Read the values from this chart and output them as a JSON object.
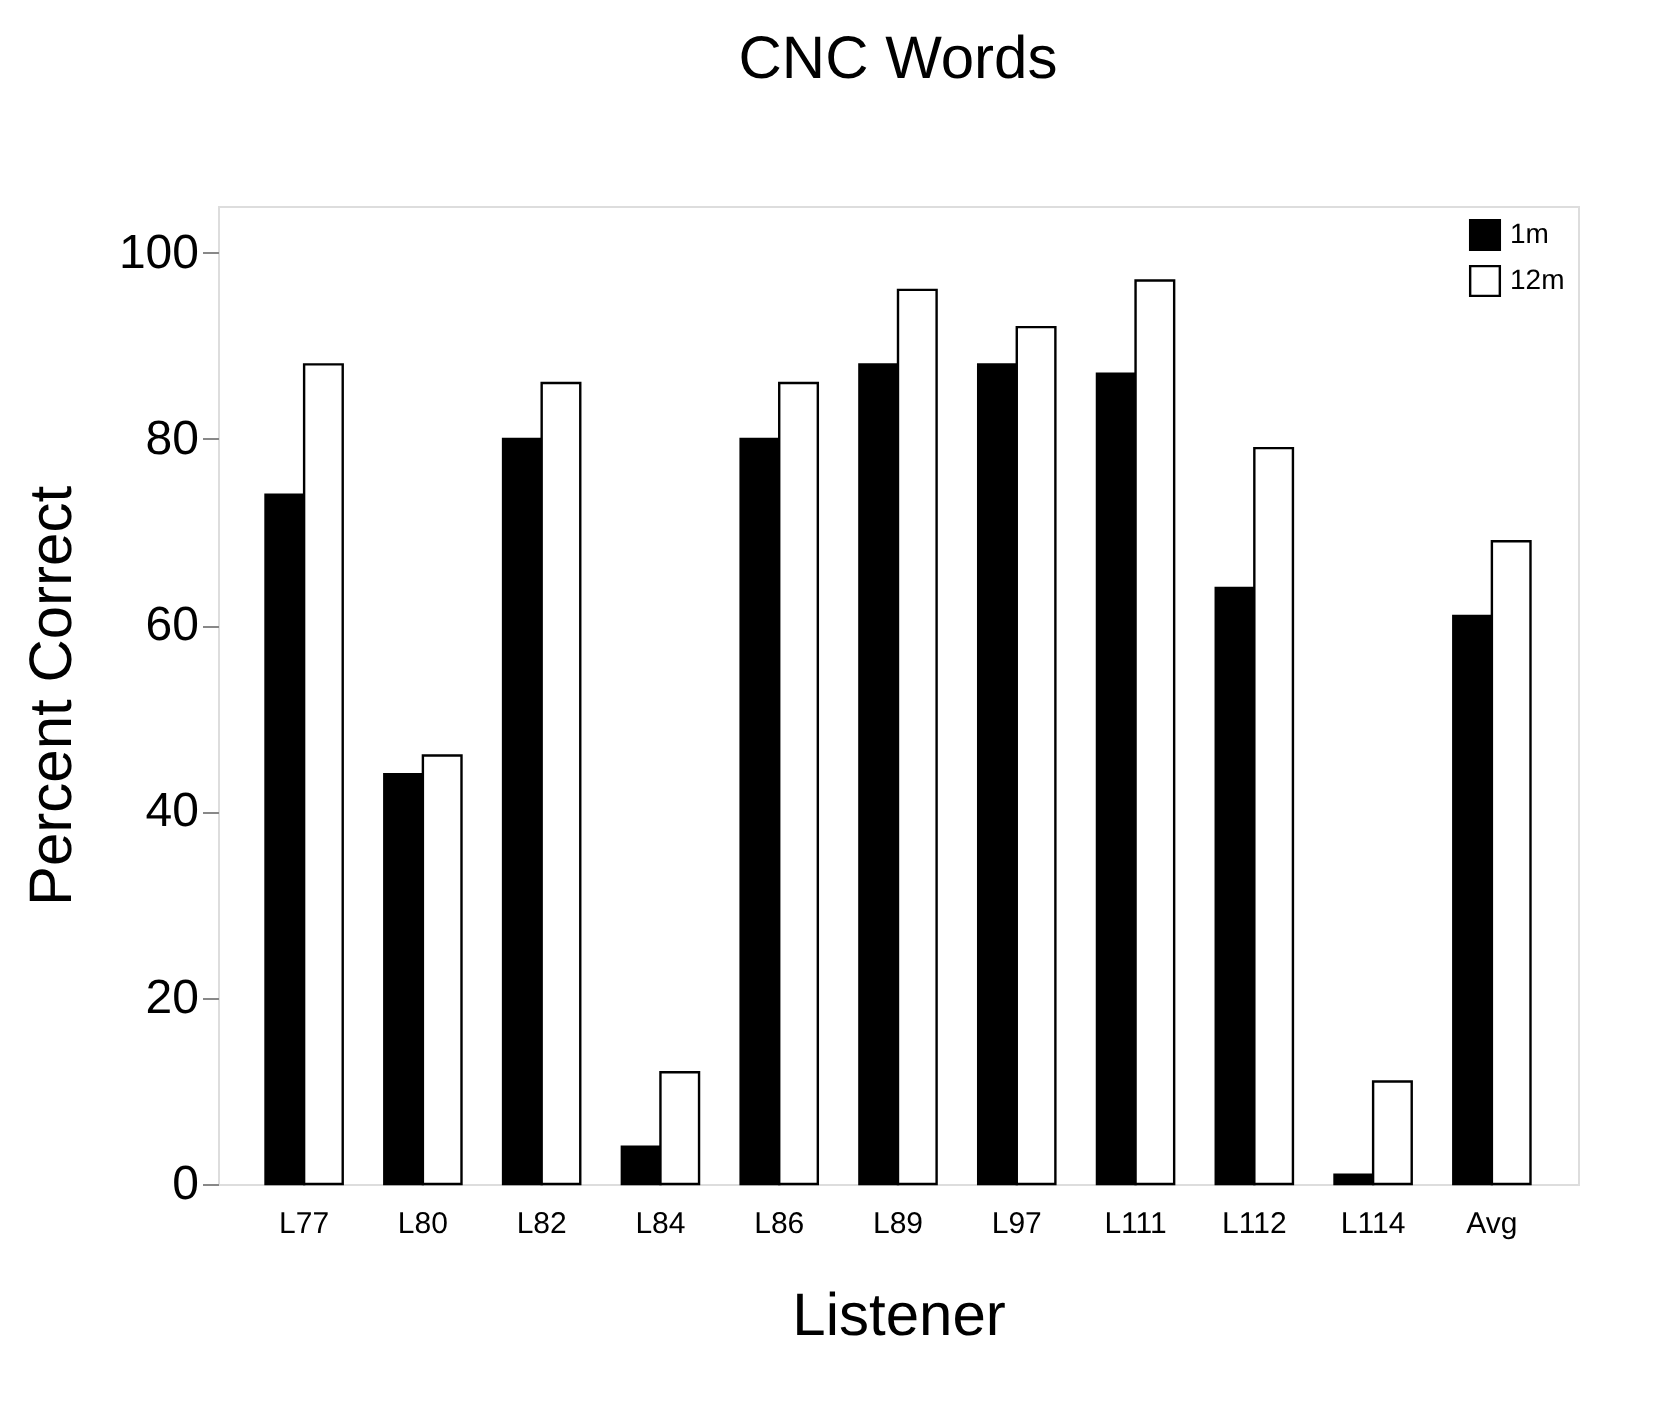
{
  "chart_data": {
    "type": "bar",
    "title": "CNC Words",
    "xlabel": "Listener",
    "ylabel": "Percent Correct",
    "categories": [
      "L77",
      "L80",
      "L82",
      "L84",
      "L86",
      "L89",
      "L97",
      "L111",
      "L112",
      "L114",
      "Avg"
    ],
    "series": [
      {
        "name": "1m",
        "color": "#000000",
        "values": [
          74,
          44,
          80,
          4,
          80,
          88,
          88,
          87,
          64,
          1,
          61
        ]
      },
      {
        "name": "12m",
        "color": "#ffffff",
        "values": [
          88,
          46,
          86,
          12,
          86,
          96,
          92,
          97,
          79,
          11,
          69
        ]
      }
    ],
    "ylim": [
      0,
      105
    ],
    "yticks": [
      0,
      20,
      40,
      60,
      80,
      100
    ],
    "grid": false,
    "legend": "top right"
  }
}
